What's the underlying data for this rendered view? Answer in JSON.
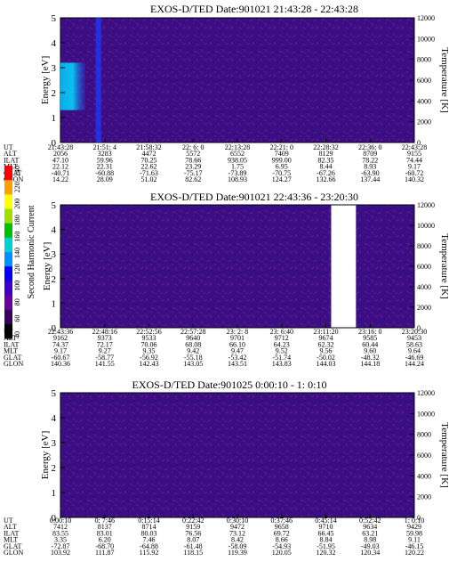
{
  "chart_data": [
    {
      "type": "heatmap",
      "title": "EXOS-D/TED   Date:901021  21:43:28 - 22:43:28",
      "ylabel": "Energy [eV]",
      "y2label": "Temperature [K]",
      "ylim": [
        0,
        5
      ],
      "y2lim": [
        0,
        12000
      ],
      "yticks": [
        "0",
        "1",
        "2",
        "3",
        "4",
        "5"
      ],
      "y2ticks": [
        "0",
        "2000",
        "4000",
        "6000",
        "8000",
        "10000",
        "12000"
      ],
      "orbit_rows": [
        {
          "label": "UT",
          "values": [
            "21:43:28",
            "21:51: 4",
            "21:58:32",
            "22: 6: 0",
            "22:13:28",
            "22:21: 0",
            "22:28:32",
            "22:36: 0",
            "22:43:28"
          ]
        },
        {
          "label": "ALT",
          "values": [
            "2056",
            "3283",
            "4472",
            "5572",
            "6552",
            "7409",
            "8129",
            "8709",
            "9155"
          ]
        },
        {
          "label": "ILAT",
          "values": [
            "47.10",
            "59.96",
            "70.25",
            "78.66",
            "938.05",
            "999.00",
            "82.35",
            "78.22",
            "74.44"
          ]
        },
        {
          "label": "MLT",
          "values": [
            "22.12",
            "22.31",
            "22.62",
            "23.29",
            "1.75",
            "6.95",
            "8.44",
            "8.93",
            "9.17"
          ]
        },
        {
          "label": "GLAT",
          "values": [
            "-40.71",
            "-60.88",
            "-71.63",
            "-75.17",
            "-73.89",
            "-70.75",
            "-67.26",
            "-63.90",
            "-60.72"
          ]
        },
        {
          "label": "GLON",
          "values": [
            "14.22",
            "28.09",
            "51.02",
            "82.62",
            "108.93",
            "124.27",
            "132.66",
            "137.44",
            "140.32"
          ]
        }
      ],
      "highlights": [
        {
          "x_frac_start": 0.0,
          "x_frac_end": 0.07,
          "energy_min": 1.3,
          "energy_max": 3.2,
          "level": "high"
        },
        {
          "x_frac_start": 0.1,
          "x_frac_end": 0.115,
          "energy_min": 0,
          "energy_max": 5,
          "level": "mid"
        }
      ]
    },
    {
      "type": "heatmap",
      "title": "EXOS-D/TED   Date:901021  22:43:36 - 23:20:30",
      "ylabel": "Energy [eV]",
      "y2label": "Temperature [K]",
      "ylim": [
        0,
        5
      ],
      "y2lim": [
        0,
        12000
      ],
      "yticks": [
        "0",
        "1",
        "2",
        "3",
        "4",
        "5"
      ],
      "y2ticks": [
        "0",
        "2000",
        "4000",
        "6000",
        "8000",
        "10000",
        "12000"
      ],
      "gap": {
        "x_frac_start": 0.765,
        "x_frac_end": 0.835
      },
      "orbit_rows": [
        {
          "label": "UT",
          "values": [
            "22:43:36",
            "22:48:16",
            "22:52:56",
            "22:57:28",
            "23: 2: 8",
            "23: 6:40",
            "23:11:20",
            "23:16: 0",
            "23:20:30"
          ]
        },
        {
          "label": "ALT",
          "values": [
            "9162",
            "9373",
            "9533",
            "9640",
            "9701",
            "9712",
            "9674",
            "9585",
            "9453"
          ]
        },
        {
          "label": "ILAT",
          "values": [
            "74.37",
            "72.17",
            "70.06",
            "68.08",
            "66.10",
            "64.23",
            "62.32",
            "60.44",
            "58.63"
          ]
        },
        {
          "label": "MLT",
          "values": [
            "9.17",
            "9.27",
            "9.35",
            "9.42",
            "9.47",
            "9.52",
            "9.56",
            "9.60",
            "9.64"
          ]
        },
        {
          "label": "GLAT",
          "values": [
            "-60.67",
            "-58.77",
            "-56.92",
            "-55.18",
            "-53.42",
            "-51.74",
            "-50.02",
            "-48.32",
            "-46.69"
          ]
        },
        {
          "label": "GLON",
          "values": [
            "140.36",
            "141.55",
            "142.43",
            "143.05",
            "143.51",
            "143.83",
            "144.03",
            "144.18",
            "144.24"
          ]
        }
      ]
    },
    {
      "type": "heatmap",
      "title": "EXOS-D/TED   Date:901025   0:00:10 -  1: 0:10",
      "ylabel": "Energy [eV]",
      "y2label": "Temperature [K]",
      "ylim": [
        0,
        5
      ],
      "y2lim": [
        0,
        12000
      ],
      "yticks": [
        "0",
        "1",
        "2",
        "3",
        "4",
        "5"
      ],
      "y2ticks": [
        "0",
        "2000",
        "4000",
        "6000",
        "8000",
        "10000",
        "12000"
      ],
      "orbit_rows": [
        {
          "label": "UT",
          "values": [
            "0:00:10",
            "0: 7:46",
            "0:15:14",
            "0:22:42",
            "0:30:10",
            "0:37:46",
            "0:45:14",
            "0:52:42",
            "1: 0:10"
          ]
        },
        {
          "label": "ALT",
          "values": [
            "7412",
            "8137",
            "8714",
            "9159",
            "9472",
            "9658",
            "9710",
            "9634",
            "9429"
          ]
        },
        {
          "label": "ILAT",
          "values": [
            "83.55",
            "83.01",
            "80.03",
            "76.56",
            "73.12",
            "69.72",
            "66.45",
            "63.21",
            "59.98"
          ]
        },
        {
          "label": "MLT",
          "values": [
            "3.35",
            "6.20",
            "7.46",
            "8.07",
            "8.42",
            "8.66",
            "8.84",
            "8.98",
            "9.11"
          ]
        },
        {
          "label": "GLAT",
          "values": [
            "-72.87",
            "-68.70",
            "-64.88",
            "-61.48",
            "-58.09",
            "-54.93",
            "-51.95",
            "-49.03",
            "-46.15"
          ]
        },
        {
          "label": "GLON",
          "values": [
            "103.92",
            "111.87",
            "115.92",
            "118.15",
            "119.39",
            "120.05",
            "120.32",
            "120.34",
            "120.22"
          ]
        }
      ]
    }
  ],
  "colorbar": {
    "label": "Second Harmonic Current",
    "ticks": [
      "40",
      "60",
      "80",
      "100",
      "120",
      "140",
      "160",
      "180",
      "200",
      "220",
      "240"
    ],
    "colors": [
      "#000000",
      "#3a0060",
      "#6a00a0",
      "#3c00c8",
      "#0000ff",
      "#0090ff",
      "#00d0d0",
      "#00c000",
      "#a0e000",
      "#ffff00",
      "#ffa000",
      "#ff0000"
    ]
  }
}
